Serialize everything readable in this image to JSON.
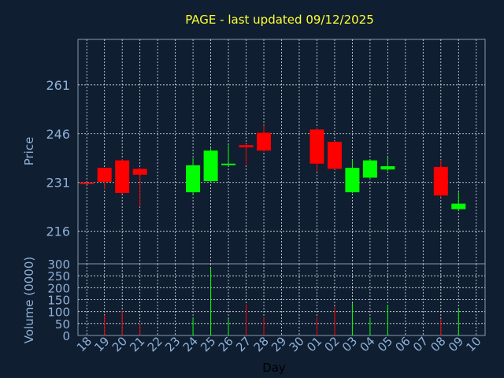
{
  "chart_data": [
    {
      "type": "candlestick",
      "title": "PAGE - last updated 09/12/2025",
      "ylabel": "Price",
      "xlabel": "Day",
      "ylim": [
        206,
        275
      ],
      "yticks": [
        216,
        231,
        246,
        261
      ],
      "grid": true,
      "up_color": "#00ff00",
      "down_color": "#ff0000",
      "categories": [
        "18",
        "19",
        "20",
        "21",
        "22",
        "23",
        "24",
        "25",
        "26",
        "27",
        "28",
        "29",
        "30",
        "01",
        "02",
        "03",
        "04",
        "05",
        "06",
        "07",
        "08",
        "09",
        "10"
      ],
      "candles": [
        {
          "x": "18",
          "open": 231,
          "high": 231,
          "low": 231,
          "close": 230.6
        },
        {
          "x": "19",
          "open": 235.5,
          "high": 235.5,
          "low": 229,
          "close": 231.2
        },
        {
          "x": "20",
          "open": 237.8,
          "high": 238.2,
          "low": 227.5,
          "close": 227.8
        },
        {
          "x": "21",
          "open": 235.2,
          "high": 235.5,
          "low": 223.5,
          "close": 233.4
        },
        {
          "x": "24",
          "open": 228,
          "high": 238.5,
          "low": 227.5,
          "close": 236.3
        },
        {
          "x": "25",
          "open": 231.4,
          "high": 241.5,
          "low": 231,
          "close": 240.8
        },
        {
          "x": "26",
          "open": 236.4,
          "high": 242.5,
          "low": 236.3,
          "close": 236.8
        },
        {
          "x": "27",
          "open": 242.5,
          "high": 242.8,
          "low": 236.5,
          "close": 241.8
        },
        {
          "x": "28",
          "open": 246.3,
          "high": 248.5,
          "low": 240.5,
          "close": 240.8
        },
        {
          "x": "01",
          "open": 247.3,
          "high": 247.8,
          "low": 234.5,
          "close": 236.8
        },
        {
          "x": "02",
          "open": 243.5,
          "high": 243.8,
          "low": 235,
          "close": 235.2
        },
        {
          "x": "03",
          "open": 228,
          "high": 238,
          "low": 227.8,
          "close": 235.5
        },
        {
          "x": "04",
          "open": 232.5,
          "high": 238,
          "low": 232,
          "close": 237.8
        },
        {
          "x": "05",
          "open": 235,
          "high": 238.8,
          "low": 234.5,
          "close": 236
        },
        {
          "x": "08",
          "open": 235.8,
          "high": 238,
          "low": 226.5,
          "close": 227
        },
        {
          "x": "09",
          "open": 222.8,
          "high": 228,
          "low": 222.5,
          "close": 224.5
        }
      ]
    },
    {
      "type": "bar",
      "ylabel": "Volume (0000)",
      "ylim": [
        0,
        300
      ],
      "yticks": [
        0,
        50,
        100,
        150,
        200,
        250,
        300
      ],
      "grid": true,
      "categories": [
        "18",
        "19",
        "20",
        "21",
        "22",
        "23",
        "24",
        "25",
        "26",
        "27",
        "28",
        "29",
        "30",
        "01",
        "02",
        "03",
        "04",
        "05",
        "06",
        "07",
        "08",
        "09",
        "10"
      ],
      "bars": [
        {
          "x": "19",
          "value": 85,
          "dir": "down"
        },
        {
          "x": "20",
          "value": 102,
          "dir": "down"
        },
        {
          "x": "21",
          "value": 50,
          "dir": "down"
        },
        {
          "x": "24",
          "value": 72,
          "dir": "up"
        },
        {
          "x": "25",
          "value": 280,
          "dir": "up"
        },
        {
          "x": "26",
          "value": 70,
          "dir": "up"
        },
        {
          "x": "27",
          "value": 130,
          "dir": "down"
        },
        {
          "x": "28",
          "value": 75,
          "dir": "down"
        },
        {
          "x": "01",
          "value": 78,
          "dir": "down"
        },
        {
          "x": "02",
          "value": 120,
          "dir": "down"
        },
        {
          "x": "03",
          "value": 135,
          "dir": "up"
        },
        {
          "x": "04",
          "value": 72,
          "dir": "up"
        },
        {
          "x": "05",
          "value": 128,
          "dir": "up"
        },
        {
          "x": "08",
          "value": 70,
          "dir": "down"
        },
        {
          "x": "09",
          "value": 115,
          "dir": "up"
        }
      ]
    }
  ]
}
